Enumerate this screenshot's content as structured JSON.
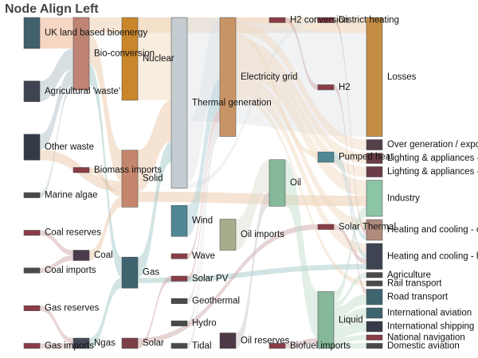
{
  "title": "Node Align Left",
  "chart_data": {
    "type": "sankey",
    "title": "Node Align Left",
    "nodes": [
      {
        "id": "uk_bio",
        "label": "UK land based bioenergy",
        "column": 0,
        "color": "#40606c"
      },
      {
        "id": "agri_waste",
        "label": "Agricultural 'waste'",
        "column": 0,
        "color": "#3f4452"
      },
      {
        "id": "other_waste",
        "label": "Other waste",
        "column": 0,
        "color": "#323a46"
      },
      {
        "id": "marine",
        "label": "Marine algae",
        "column": 0,
        "color": "#4a4a4a"
      },
      {
        "id": "coal_res",
        "label": "Coal reserves",
        "column": 0,
        "color": "#8a3d47"
      },
      {
        "id": "coal_imp",
        "label": "Coal imports",
        "column": 0,
        "color": "#4a4a4a"
      },
      {
        "id": "gas_res",
        "label": "Gas reserves",
        "column": 0,
        "color": "#8a3d47"
      },
      {
        "id": "gas_imp",
        "label": "Gas imports",
        "column": 0,
        "color": "#8a3d47"
      },
      {
        "id": "bio_conv",
        "label": "Bio-conversion",
        "column": 1,
        "color": "#bf8474"
      },
      {
        "id": "biomass_imp",
        "label": "Biomass imports",
        "column": 1,
        "color": "#8a3d47"
      },
      {
        "id": "coal",
        "label": "Coal",
        "column": 1,
        "color": "#4a3a4a"
      },
      {
        "id": "ngas",
        "label": "Ngas",
        "column": 1,
        "color": "#444a55"
      },
      {
        "id": "nuclear",
        "label": "Nuclear",
        "column": 2,
        "color": "#c9862a"
      },
      {
        "id": "solid",
        "label": "Solid",
        "column": 2,
        "color": "#c4866d"
      },
      {
        "id": "gas",
        "label": "Gas",
        "column": 2,
        "color": "#3e6470"
      },
      {
        "id": "solar",
        "label": "Solar",
        "column": 2,
        "color": "#7d3f47"
      },
      {
        "id": "thermal",
        "label": "Thermal generation",
        "column": 3,
        "color": "#c4ccd1"
      },
      {
        "id": "wind",
        "label": "Wind",
        "column": 3,
        "color": "#4f8793"
      },
      {
        "id": "wave",
        "label": "Wave",
        "column": 3,
        "color": "#8a3d47"
      },
      {
        "id": "solar_pv",
        "label": "Solar PV",
        "column": 3,
        "color": "#8a3d47"
      },
      {
        "id": "geothermal",
        "label": "Geothermal",
        "column": 3,
        "color": "#4a4a4a"
      },
      {
        "id": "hydro",
        "label": "Hydro",
        "column": 3,
        "color": "#4a4a4a"
      },
      {
        "id": "tidal",
        "label": "Tidal",
        "column": 3,
        "color": "#4a4a4a"
      },
      {
        "id": "elec_grid",
        "label": "Electricity grid",
        "column": 4,
        "color": "#c99465"
      },
      {
        "id": "oil_imp",
        "label": "Oil imports",
        "column": 4,
        "color": "#a9ac8c"
      },
      {
        "id": "oil_res",
        "label": "Oil reserves",
        "column": 4,
        "color": "#4e3a46"
      },
      {
        "id": "h2_conv",
        "label": "H2 conversion",
        "column": 5,
        "color": "#8a3d47"
      },
      {
        "id": "oil",
        "label": "Oil",
        "column": 5,
        "color": "#86b89a"
      },
      {
        "id": "biofuel_imp",
        "label": "Biofuel imports",
        "column": 5,
        "color": "#8a3d47"
      },
      {
        "id": "district",
        "label": "District heating",
        "column": 6,
        "color": "#8a3d47"
      },
      {
        "id": "h2",
        "label": "H2",
        "column": 6,
        "color": "#8a3d47"
      },
      {
        "id": "pumped",
        "label": "Pumped heat",
        "column": 6,
        "color": "#4f8793"
      },
      {
        "id": "solar_thermal",
        "label": "Solar Thermal",
        "column": 6,
        "color": "#8a3d47"
      },
      {
        "id": "liquid",
        "label": "Liquid",
        "column": 6,
        "color": "#86b89a"
      },
      {
        "id": "losses",
        "label": "Losses",
        "column": 7,
        "color": "#c48d44"
      },
      {
        "id": "over_gen",
        "label": "Over generation / exports",
        "column": 7,
        "color": "#544048"
      },
      {
        "id": "light1",
        "label": "Lighting & appliances - commercial",
        "column": 7,
        "color": "#6a3d47"
      },
      {
        "id": "light2",
        "label": "Lighting & appliances - homes",
        "column": 7,
        "color": "#6a3d47"
      },
      {
        "id": "industry",
        "label": "Industry",
        "column": 7,
        "color": "#8cc4a6"
      },
      {
        "id": "heat1",
        "label": "Heating and cooling - commercial",
        "column": 7,
        "color": "#b08a7c"
      },
      {
        "id": "heat2",
        "label": "Heating and cooling - homes",
        "column": 7,
        "color": "#3e4452"
      },
      {
        "id": "agri",
        "label": "Agriculture",
        "column": 7,
        "color": "#4a4a4a"
      },
      {
        "id": "rail",
        "label": "Rail transport",
        "column": 7,
        "color": "#4a4a4a"
      },
      {
        "id": "road",
        "label": "Road transport",
        "column": 7,
        "color": "#3e6470"
      },
      {
        "id": "intl_av",
        "label": "International aviation",
        "column": 7,
        "color": "#3e6470"
      },
      {
        "id": "intl_ship",
        "label": "International shipping",
        "column": 7,
        "color": "#353a46"
      },
      {
        "id": "nat_nav",
        "label": "National navigation",
        "column": 7,
        "color": "#8a3d47"
      },
      {
        "id": "dom_av",
        "label": "Domestic aviation",
        "column": 7,
        "color": "#4a4a4a"
      }
    ],
    "links": [
      {
        "source": "uk_bio",
        "target": "bio_conv",
        "value": 6,
        "color": "#e8a47a"
      },
      {
        "source": "agri_waste",
        "target": "bio_conv",
        "value": 4,
        "color": "#a8b8c2"
      },
      {
        "source": "other_waste",
        "target": "bio_conv",
        "value": 3,
        "color": "#a8b8c2"
      },
      {
        "source": "other_waste",
        "target": "solid",
        "value": 2,
        "color": "#e8c0a0"
      },
      {
        "source": "marine",
        "target": "bio_conv",
        "value": 1,
        "color": "#a8b8c2"
      },
      {
        "source": "coal_res",
        "target": "coal",
        "value": 1,
        "color": "#c9a0a0"
      },
      {
        "source": "coal_imp",
        "target": "coal",
        "value": 1,
        "color": "#c9a0a0"
      },
      {
        "source": "gas_res",
        "target": "ngas",
        "value": 1,
        "color": "#c9a0a0"
      },
      {
        "source": "gas_imp",
        "target": "ngas",
        "value": 1,
        "color": "#c9a0a0"
      },
      {
        "source": "bio_conv",
        "target": "solid",
        "value": 6,
        "color": "#e8c0a0"
      },
      {
        "source": "bio_conv",
        "target": "gas",
        "value": 4,
        "color": "#9cc4c4"
      },
      {
        "source": "bio_conv",
        "target": "losses",
        "value": 3,
        "color": "#eac7a2"
      },
      {
        "source": "biomass_imp",
        "target": "solid",
        "value": 1,
        "color": "#e8c0a0"
      },
      {
        "source": "coal",
        "target": "solid",
        "value": 2,
        "color": "#e8c0a0"
      },
      {
        "source": "ngas",
        "target": "gas",
        "value": 2,
        "color": "#9cc4c4"
      },
      {
        "source": "nuclear",
        "target": "thermal",
        "value": 16,
        "color": "#f2d8bb"
      },
      {
        "source": "solid",
        "target": "thermal",
        "value": 8,
        "color": "#e8c0a0"
      },
      {
        "source": "solid",
        "target": "industry",
        "value": 2,
        "color": "#e8c0a0"
      },
      {
        "source": "gas",
        "target": "thermal",
        "value": 4,
        "color": "#9cc4c4"
      },
      {
        "source": "gas",
        "target": "heat2",
        "value": 1,
        "color": "#9cc4c4"
      },
      {
        "source": "solar",
        "target": "solar_pv",
        "value": 1,
        "color": "#c9a0a0"
      },
      {
        "source": "solar",
        "target": "solar_thermal",
        "value": 1,
        "color": "#c9a0a0"
      },
      {
        "source": "thermal",
        "target": "losses",
        "value": 20,
        "color": "#dde3e7"
      },
      {
        "source": "thermal",
        "target": "elec_grid",
        "value": 12,
        "color": "#dde3e7"
      },
      {
        "source": "thermal",
        "target": "district",
        "value": 1,
        "color": "#dde3e7"
      },
      {
        "source": "wind",
        "target": "elec_grid",
        "value": 6,
        "color": "#a7cdd2"
      },
      {
        "source": "wave",
        "target": "elec_grid",
        "value": 1,
        "color": "#c9a0a0"
      },
      {
        "source": "solar_pv",
        "target": "elec_grid",
        "value": 1,
        "color": "#c9a0a0"
      },
      {
        "source": "geothermal",
        "target": "elec_grid",
        "value": 1,
        "color": "#c9c9c9"
      },
      {
        "source": "hydro",
        "target": "elec_grid",
        "value": 1,
        "color": "#c9c9c9"
      },
      {
        "source": "tidal",
        "target": "elec_grid",
        "value": 1,
        "color": "#c9c9c9"
      },
      {
        "source": "elec_grid",
        "target": "over_gen",
        "value": 2,
        "color": "#f0d6bd"
      },
      {
        "source": "elec_grid",
        "target": "light1",
        "value": 2,
        "color": "#f0d6bd"
      },
      {
        "source": "elec_grid",
        "target": "light2",
        "value": 2,
        "color": "#f0d6bd"
      },
      {
        "source": "elec_grid",
        "target": "industry",
        "value": 3,
        "color": "#f0d6bd"
      },
      {
        "source": "elec_grid",
        "target": "heat1",
        "value": 2,
        "color": "#f0d6bd"
      },
      {
        "source": "elec_grid",
        "target": "heat2",
        "value": 2,
        "color": "#f0d6bd"
      },
      {
        "source": "elec_grid",
        "target": "h2_conv",
        "value": 1,
        "color": "#f0d6bd"
      },
      {
        "source": "elec_grid",
        "target": "pumped",
        "value": 1,
        "color": "#f0d6bd"
      },
      {
        "source": "elec_grid",
        "target": "rail",
        "value": 1,
        "color": "#f0d6bd"
      },
      {
        "source": "h2_conv",
        "target": "h2",
        "value": 1,
        "color": "#c9a0a0"
      },
      {
        "source": "oil_imp",
        "target": "oil",
        "value": 6,
        "color": "#dcdcd0"
      },
      {
        "source": "oil_res",
        "target": "oil",
        "value": 3,
        "color": "#c9c0c6"
      },
      {
        "source": "oil",
        "target": "liquid",
        "value": 9,
        "color": "#bfdcca"
      },
      {
        "source": "biofuel_imp",
        "target": "liquid",
        "value": 1,
        "color": "#c9a0a0"
      },
      {
        "source": "district",
        "target": "heat1",
        "value": 1,
        "color": "#c9a0a0"
      },
      {
        "source": "h2",
        "target": "road",
        "value": 1,
        "color": "#c9a0a0"
      },
      {
        "source": "pumped",
        "target": "heat1",
        "value": 1,
        "color": "#a7cdd2"
      },
      {
        "source": "pumped",
        "target": "heat2",
        "value": 1,
        "color": "#a7cdd2"
      },
      {
        "source": "solar_thermal",
        "target": "heat2",
        "value": 1,
        "color": "#c9a0a0"
      },
      {
        "source": "liquid",
        "target": "industry",
        "value": 2,
        "color": "#bfdcca"
      },
      {
        "source": "liquid",
        "target": "agri",
        "value": 1,
        "color": "#bfdcca"
      },
      {
        "source": "liquid",
        "target": "road",
        "value": 2,
        "color": "#bfdcca"
      },
      {
        "source": "liquid",
        "target": "intl_av",
        "value": 2,
        "color": "#bfdcca"
      },
      {
        "source": "liquid",
        "target": "intl_ship",
        "value": 2,
        "color": "#bfdcca"
      },
      {
        "source": "liquid",
        "target": "nat_nav",
        "value": 1,
        "color": "#bfdcca"
      },
      {
        "source": "liquid",
        "target": "dom_av",
        "value": 1,
        "color": "#bfdcca"
      }
    ]
  }
}
